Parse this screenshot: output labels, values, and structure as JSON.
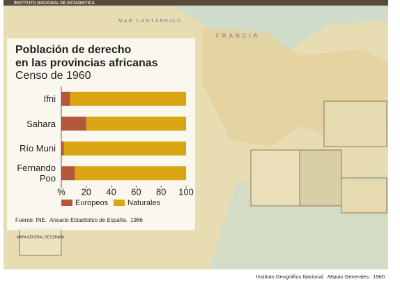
{
  "chart_data": {
    "type": "stacked-bar-horizontal",
    "title": "Población de derecho",
    "title_line2": "en las provincias africanas",
    "subtitle": "Censo de 1960",
    "categories": [
      "Ifni",
      "Sahara",
      "Río Muni",
      "Fernando Poo"
    ],
    "series": [
      {
        "name": "Europeos",
        "color": "#b5573a",
        "values": [
          7,
          20,
          2,
          11
        ]
      },
      {
        "name": "Naturales",
        "color": "#d9a514",
        "values": [
          93,
          80,
          98,
          89
        ]
      }
    ],
    "xlim": [
      0,
      100
    ],
    "xticks": [
      {
        "value": 0,
        "label": "%"
      },
      20,
      40,
      60,
      80,
      100
    ]
  },
  "source": {
    "prefix": "Fuente: INE.",
    "italic": "Anuario Estadístico de España.",
    "year": "1966"
  },
  "credit": {
    "prefix": "Instituto Geográfico Nacional.",
    "italic": "Mapas Generales.",
    "year": "1960"
  },
  "map_labels": {
    "header": "INSTITUTO NACIONAL DE ESTADISTICA",
    "sea": "MAR CANTÁBRICO",
    "country": "FRANCIA",
    "map_title": "MAPA GENERAL DE ESPAÑA"
  }
}
